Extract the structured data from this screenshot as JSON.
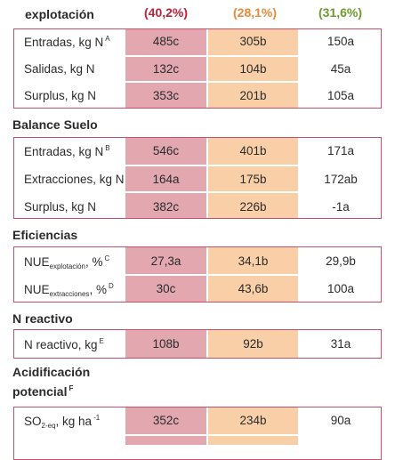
{
  "header": {
    "title": "explotación",
    "col1": "(40,2%)",
    "col2": "(28,1%)",
    "col3": "(31,6%)",
    "col1_color": "#b8243a",
    "col2_color": "#e88a3a",
    "col3_color": "#6c9b2d"
  },
  "sections": {
    "balance_suelo": "Balance Suelo",
    "eficiencias": "Eficiencias",
    "n_reactivo": "N reactivo",
    "acidificacion_line1": "Acidificación",
    "acidificacion_line2": "potencial",
    "acidificacion_sup": "F"
  },
  "rows": {
    "entradas1": {
      "label": "Entradas, kg N",
      "sup": "A",
      "v1": "485c",
      "v2": "305b",
      "v3": "150a"
    },
    "salidas": {
      "label": "Salidas, kg N",
      "v1": "132c",
      "v2": "104b",
      "v3": "45a"
    },
    "surplus1": {
      "label": "Surplus, kg N",
      "v1": "353c",
      "v2": "201b",
      "v3": "105a"
    },
    "entradas2": {
      "label": "Entradas, kg N",
      "sup": "B",
      "v1": "546c",
      "v2": "401b",
      "v3": "171a"
    },
    "extracciones": {
      "label": "Extracciones, kg N",
      "v1": "164a",
      "v2": "175b",
      "v3": "172ab"
    },
    "surplus2": {
      "label": "Surplus, kg N",
      "v1": "382c",
      "v2": "226b",
      "v3": "-1a"
    },
    "nue1": {
      "label": "NUE",
      "sub": "explotación",
      "suffix": ", %",
      "sup": "C",
      "v1": "27,3a",
      "v2": "34,1b",
      "v3": "29,9b"
    },
    "nue2": {
      "label": "NUE",
      "sub": "extracciones",
      "suffix": ", %",
      "sup": "D",
      "v1": "30c",
      "v2": "43,6b",
      "v3": "100a"
    },
    "nreactivo": {
      "label": "N reactivo, kg",
      "sup": "E",
      "v1": "108b",
      "v2": "92b",
      "v3": "31a"
    },
    "so2": {
      "label": "SO",
      "sub": "2-eq",
      "suffix": ", kg ha",
      "sup": "-1",
      "v1": "352c",
      "v2": "234b",
      "v3": "90a"
    }
  }
}
